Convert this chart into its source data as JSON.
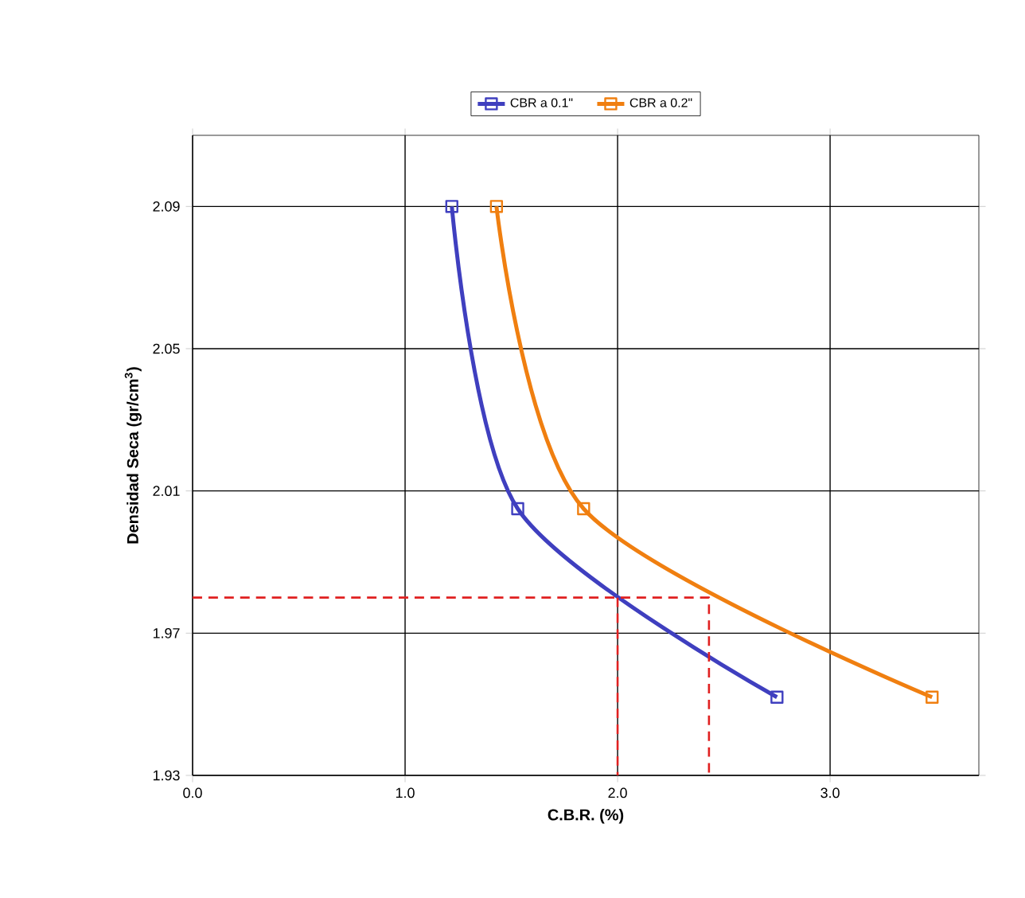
{
  "chart_data": {
    "type": "line",
    "xlabel": "C.B.R. (%)",
    "ylabel": "Densidad Seca (gr/cm$^{3}$)",
    "xlim": [
      0,
      3.7
    ],
    "ylim": [
      1.93,
      2.11
    ],
    "xticks": [
      {
        "value": 0,
        "label": "0.0"
      },
      {
        "value": 1,
        "label": "1.0"
      },
      {
        "value": 2,
        "label": "2.0"
      },
      {
        "value": 3,
        "label": "3.0"
      }
    ],
    "yticks": [
      1.93,
      1.97,
      2.01,
      2.05,
      2.09
    ],
    "grid": true,
    "legend": "top",
    "marker": "square",
    "series": [
      {
        "name": "CBR a 0.1\"",
        "color": "#3f3fbf",
        "x": [
          1.22,
          1.53,
          2.75
        ],
        "values": [
          2.09,
          2.005,
          1.952
        ]
      },
      {
        "name": "CBR a 0.2\"",
        "color": "#f07f10",
        "x": [
          1.43,
          1.84,
          3.48
        ],
        "values": [
          2.09,
          2.005,
          1.952
        ]
      },
      {
        "type": "step",
        "color": "#e02020",
        "line_style": "dashed",
        "marker": "none",
        "x": [
          0,
          2.43,
          2.43
        ],
        "values": [
          1.98,
          1.98,
          1.93
        ]
      },
      {
        "type": "step",
        "color": "#e02020",
        "line_style": "dashed",
        "marker": "none",
        "x": [
          2.0,
          2.0
        ],
        "values": [
          1.98,
          1.93
        ]
      }
    ]
  }
}
